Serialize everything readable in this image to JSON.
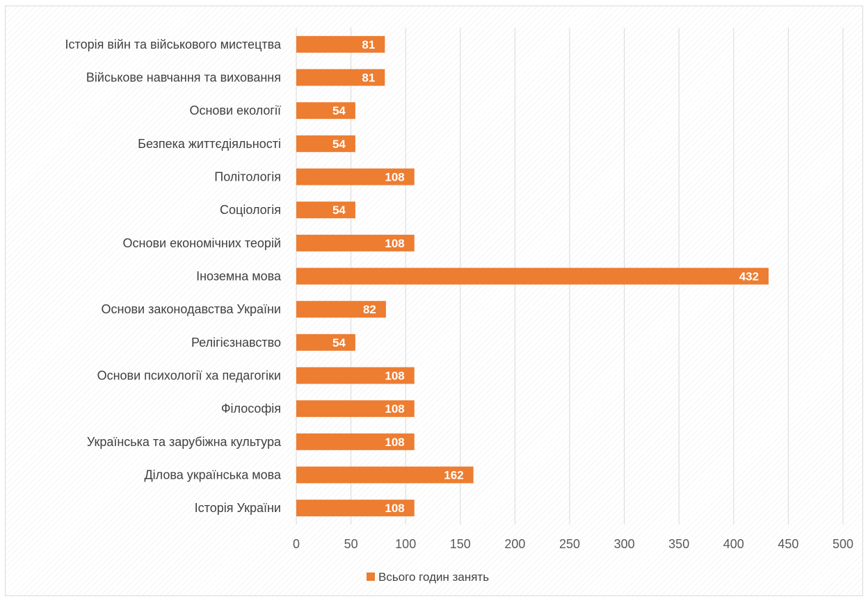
{
  "chart_data": {
    "type": "bar",
    "orientation": "horizontal",
    "title": "",
    "xlabel": "",
    "ylabel": "",
    "xlim": [
      0,
      500
    ],
    "x_ticks": [
      0,
      50,
      100,
      150,
      200,
      250,
      300,
      350,
      400,
      450,
      500
    ],
    "grid": true,
    "legend_position": "bottom",
    "categories": [
      "Історія війн та військового мистецтва",
      "Військове навчання та виховання",
      "Основи екології",
      "Безпека життєдіяльності",
      "Політологія",
      "Соціологія",
      "Основи економічних теорій",
      "Іноземна мова",
      "Основи законодавства України",
      "Релігієзнавство",
      "Основи психології ха педагогіки",
      "Філософія",
      "Українська та зарубіжна культура",
      "Ділова українська мова",
      "Історія України"
    ],
    "series": [
      {
        "name": "Всього годин занять",
        "color": "#ed7d31",
        "values": [
          81,
          81,
          54,
          54,
          108,
          54,
          108,
          432,
          82,
          54,
          108,
          108,
          108,
          162,
          108
        ]
      }
    ]
  }
}
